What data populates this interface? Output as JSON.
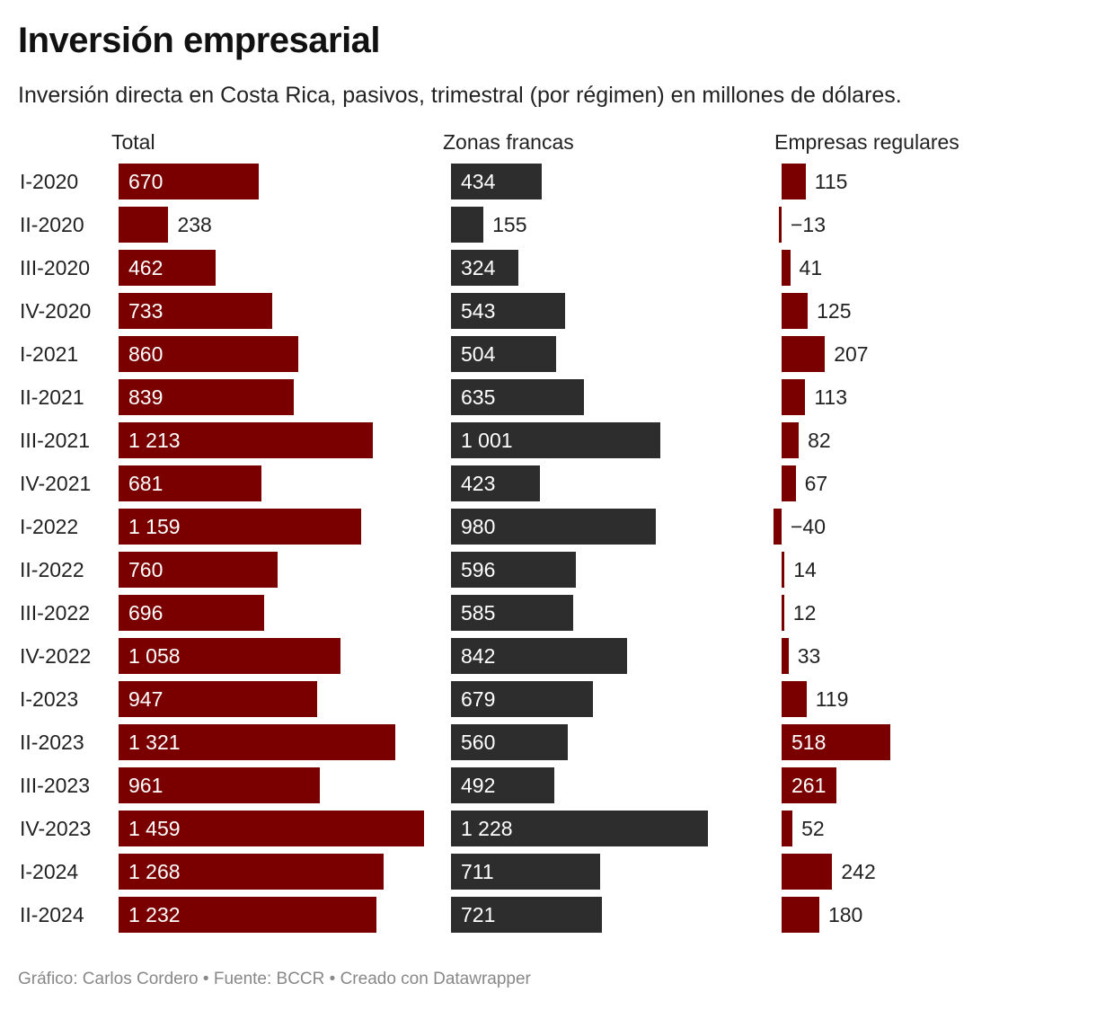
{
  "header": {
    "title": "Inversión empresarial",
    "subtitle": "Inversión directa en Costa Rica, pasivos, trimestral (por régimen) en millones de dólares."
  },
  "footer": {
    "text": "Gráfico: Carlos Cordero • Fuente: BCCR • Creado con Datawrapper"
  },
  "colors": {
    "red": "#7a0000",
    "dark": "#2d2d2d"
  },
  "chart_data": {
    "type": "bar",
    "orientation": "horizontal",
    "layout": "small-multiples",
    "title": "Inversión empresarial",
    "subtitle": "Inversión directa en Costa Rica, pasivos, trimestral (por régimen) en millones de dólares.",
    "xlabel": "",
    "ylabel": "",
    "grid": false,
    "legend": "none",
    "number_format": "space thousands separator",
    "categories": [
      "I-2020",
      "II-2020",
      "III-2020",
      "IV-2020",
      "I-2021",
      "II-2021",
      "III-2021",
      "IV-2021",
      "I-2022",
      "II-2022",
      "III-2022",
      "IV-2022",
      "I-2023",
      "II-2023",
      "III-2023",
      "IV-2023",
      "I-2024",
      "II-2024"
    ],
    "series": [
      {
        "name": "Total",
        "color": "#7a0000",
        "values": [
          670,
          238,
          462,
          733,
          860,
          839,
          1213,
          681,
          1159,
          760,
          696,
          1058,
          947,
          1321,
          961,
          1459,
          1268,
          1232
        ],
        "labels": [
          "670",
          "238",
          "462",
          "733",
          "860",
          "839",
          "1 213",
          "681",
          "1 159",
          "760",
          "696",
          "1 058",
          "947",
          "1 321",
          "961",
          "1 459",
          "1 268",
          "1 232"
        ]
      },
      {
        "name": "Zonas francas",
        "color": "#2d2d2d",
        "values": [
          434,
          155,
          324,
          543,
          504,
          635,
          1001,
          423,
          980,
          596,
          585,
          842,
          679,
          560,
          492,
          1228,
          711,
          721
        ],
        "labels": [
          "434",
          "155",
          "324",
          "543",
          "504",
          "635",
          "1 001",
          "423",
          "980",
          "596",
          "585",
          "842",
          "679",
          "560",
          "492",
          "1 228",
          "711",
          "721"
        ]
      },
      {
        "name": "Empresas regulares",
        "color": "#7a0000",
        "values": [
          115,
          -13,
          41,
          125,
          207,
          113,
          82,
          67,
          -40,
          14,
          12,
          33,
          119,
          518,
          261,
          52,
          242,
          180
        ],
        "labels": [
          "115",
          "−13",
          "41",
          "125",
          "207",
          "113",
          "82",
          "67",
          "−40",
          "14",
          "12",
          "33",
          "119",
          "518",
          "261",
          "52",
          "242",
          "180"
        ]
      }
    ]
  }
}
